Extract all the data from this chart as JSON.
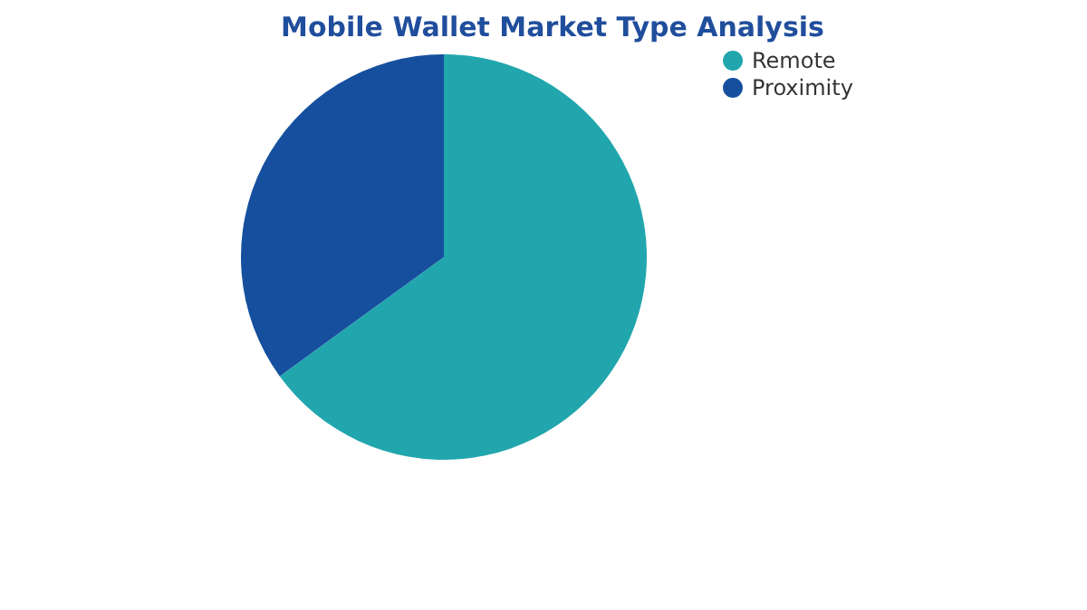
{
  "chart_data": {
    "type": "pie",
    "title": "Mobile Wallet Market Type Analysis",
    "categories": [
      "Remote",
      "Proximity"
    ],
    "values": [
      65,
      35
    ],
    "colors": [
      "#21a6ad",
      "#154f9e"
    ],
    "legend": "right"
  }
}
